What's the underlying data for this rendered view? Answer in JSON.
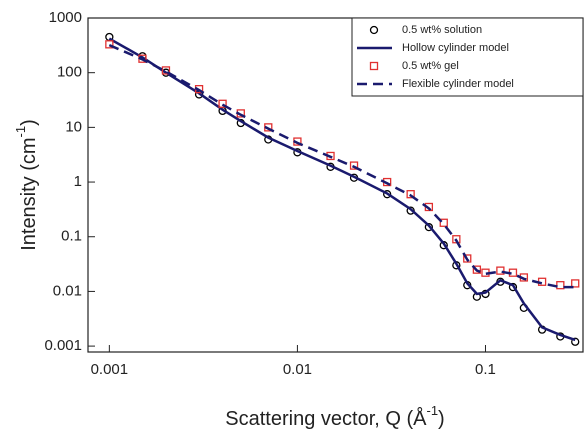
{
  "chart_data": {
    "type": "scatter",
    "ylabel": [
      "Intensity (cm",
      "-1",
      ")"
    ],
    "xlabel": [
      "Scattering vector, Q (Å",
      "-1",
      ")"
    ],
    "log_x": true,
    "log_y": true,
    "legend": "upper right",
    "xlim": [
      0.00077,
      0.33
    ],
    "ylim": [
      0.00078,
      1000
    ],
    "xticks": [
      0.001,
      0.01,
      0.1
    ],
    "yticks": [
      1000,
      100,
      10,
      1,
      0.1,
      0.01,
      0.001
    ],
    "x": [
      0.001,
      0.0015,
      0.002,
      0.003,
      0.004,
      0.005,
      0.007,
      0.01,
      0.015,
      0.02,
      0.03,
      0.04,
      0.05,
      0.06,
      0.07,
      0.08,
      0.09,
      0.1,
      0.12,
      0.14,
      0.16,
      0.2,
      0.25,
      0.3
    ],
    "series": [
      {
        "name": "0.5 wt% solution",
        "color": "#000000",
        "marker": "circle",
        "line": null,
        "values": [
          450,
          200,
          100,
          40,
          20,
          12,
          6,
          3.5,
          1.9,
          1.2,
          0.6,
          0.3,
          0.15,
          0.07,
          0.03,
          0.013,
          0.008,
          0.009,
          0.015,
          0.012,
          0.005,
          0.002,
          0.0015,
          0.0012
        ]
      },
      {
        "name": "Hollow cylinder model",
        "color": "#1a1a6e",
        "marker": null,
        "line": "solid",
        "values": [
          420,
          190,
          100,
          42,
          21,
          13,
          6.5,
          3.7,
          2,
          1.25,
          0.62,
          0.32,
          0.16,
          0.075,
          0.032,
          0.014,
          0.009,
          0.0095,
          0.016,
          0.013,
          0.006,
          0.0022,
          0.0016,
          0.0013
        ]
      },
      {
        "name": "0.5 wt% gel",
        "color": "#e03030",
        "marker": "square",
        "line": null,
        "values": [
          330,
          180,
          110,
          50,
          27,
          18,
          10,
          5.5,
          3,
          2,
          1,
          0.6,
          0.35,
          0.18,
          0.09,
          0.04,
          0.025,
          0.022,
          0.024,
          0.022,
          0.018,
          0.015,
          0.013,
          0.014
        ]
      },
      {
        "name": "Flexible cylinder model",
        "color": "#1a1a6e",
        "marker": null,
        "line": "dashed",
        "values": [
          320,
          175,
          105,
          48,
          26,
          17,
          9.5,
          5.2,
          2.9,
          1.9,
          0.95,
          0.57,
          0.33,
          0.17,
          0.085,
          0.038,
          0.024,
          0.021,
          0.023,
          0.021,
          0.017,
          0.014,
          0.012,
          0.012
        ]
      }
    ]
  }
}
